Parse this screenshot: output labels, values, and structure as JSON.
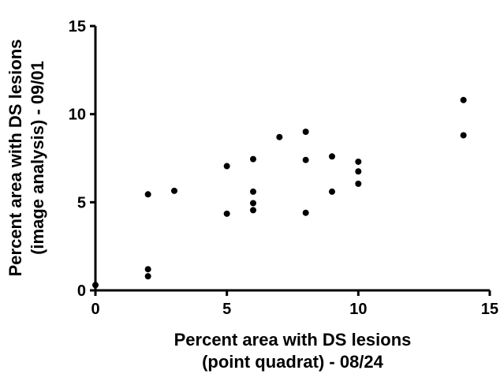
{
  "chart_data": {
    "type": "scatter",
    "title": "",
    "xlabel": [
      "Percent area with DS lesions",
      "(point quadrat) - 08/24"
    ],
    "ylabel": [
      "Percent area with DS lesions",
      "(image analysis) - 09/01"
    ],
    "xlim": [
      0,
      15
    ],
    "ylim": [
      0,
      15
    ],
    "xticks": [
      0,
      5,
      10,
      15
    ],
    "yticks": [
      0,
      5,
      10,
      15
    ],
    "grid": false,
    "legend": "none",
    "point_color": "#000000",
    "series": [
      {
        "points": [
          {
            "x": 0,
            "y": 0.3
          },
          {
            "x": 2,
            "y": 0.8
          },
          {
            "x": 2,
            "y": 1.2
          },
          {
            "x": 2,
            "y": 5.45
          },
          {
            "x": 3,
            "y": 5.65
          },
          {
            "x": 5,
            "y": 4.35
          },
          {
            "x": 5,
            "y": 7.05
          },
          {
            "x": 6,
            "y": 4.55
          },
          {
            "x": 6,
            "y": 4.95
          },
          {
            "x": 6,
            "y": 5.6
          },
          {
            "x": 6,
            "y": 7.45
          },
          {
            "x": 7,
            "y": 8.7
          },
          {
            "x": 8,
            "y": 4.4
          },
          {
            "x": 8,
            "y": 7.4
          },
          {
            "x": 8,
            "y": 9.0
          },
          {
            "x": 9,
            "y": 5.6
          },
          {
            "x": 9,
            "y": 7.6
          },
          {
            "x": 10,
            "y": 6.05
          },
          {
            "x": 10,
            "y": 6.75
          },
          {
            "x": 10,
            "y": 7.3
          },
          {
            "x": 14,
            "y": 8.8
          },
          {
            "x": 14,
            "y": 10.8
          }
        ]
      }
    ]
  }
}
